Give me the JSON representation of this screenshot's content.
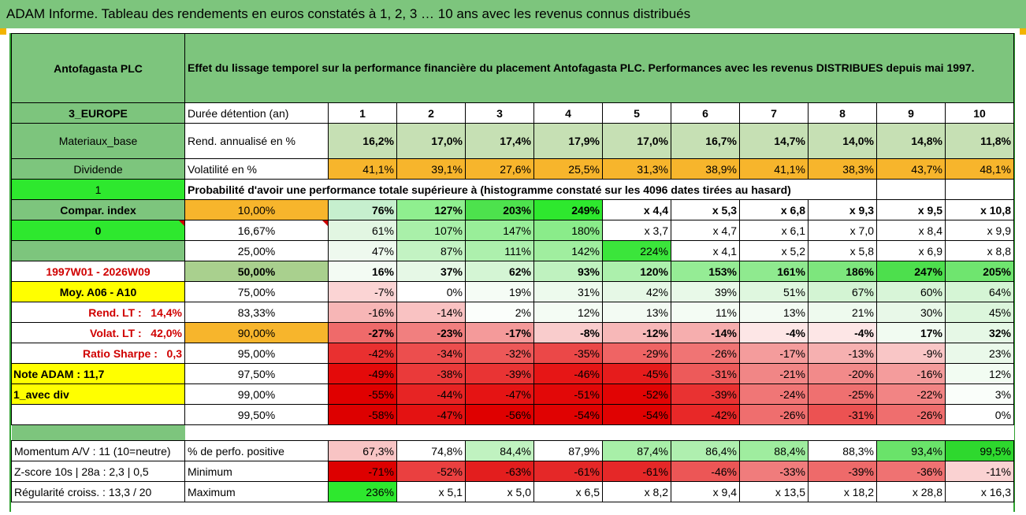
{
  "title": "ADAM Informe. Tableau des rendements en euros constatés à 1, 2, 3 … 10 ans avec les revenus connus distribués",
  "header": {
    "company": "Antofagasta PLC",
    "description": "Effet du lissage temporel sur la performance financière du placement Antofagasta PLC. Performances avec les revenus DISTRIBUES depuis mai 1997."
  },
  "left_labels": {
    "region": "3_EUROPE",
    "sector": "Materiaux_base",
    "dividend": "Dividende",
    "one": "1",
    "compar": "Compar. index",
    "zero": "0",
    "period": "1997W01 - 2026W09",
    "moy": "Moy. A06 - A10",
    "rend_lt_label": "Rend. LT :",
    "rend_lt_value": "14,4%",
    "volat_lt_label": "Volat. LT :",
    "volat_lt_value": "42,0%",
    "sharpe_label": "Ratio Sharpe :",
    "sharpe_value": "0,3",
    "note": "Note ADAM : 11,7",
    "avec_div": "1_avec div"
  },
  "durations": {
    "label": "Durée détention (an)",
    "years": [
      "1",
      "2",
      "3",
      "4",
      "5",
      "6",
      "7",
      "8",
      "9",
      "10"
    ]
  },
  "rend": {
    "label": "Rend. annualisé en %",
    "values": [
      "16,2%",
      "17,0%",
      "17,4%",
      "17,9%",
      "17,0%",
      "16,7%",
      "14,7%",
      "14,0%",
      "14,8%",
      "11,8%"
    ]
  },
  "volat": {
    "label": "Volatilité en %",
    "values": [
      "41,1%",
      "39,1%",
      "27,6%",
      "25,5%",
      "31,3%",
      "38,9%",
      "41,1%",
      "38,3%",
      "43,7%",
      "48,1%"
    ]
  },
  "prob_title": "Probabilité d'avoir une performance totale supérieure à (histogramme constaté sur les 4096 dates tirées au hasard)",
  "quantiles": [
    {
      "label": "10,00%",
      "values": [
        "76%",
        "127%",
        "203%",
        "249%",
        "x 4,4",
        "x 5,3",
        "x 6,8",
        "x 9,3",
        "x 9,5",
        "x 10,8"
      ]
    },
    {
      "label": "16,67%",
      "values": [
        "61%",
        "107%",
        "147%",
        "180%",
        "x 3,7",
        "x 4,7",
        "x 6,1",
        "x 7,0",
        "x 8,4",
        "x 9,9"
      ]
    },
    {
      "label": "25,00%",
      "values": [
        "47%",
        "87%",
        "111%",
        "142%",
        "224%",
        "x 4,1",
        "x 5,2",
        "x 5,8",
        "x 6,9",
        "x 8,8"
      ]
    },
    {
      "label": "50,00%",
      "values": [
        "16%",
        "37%",
        "62%",
        "93%",
        "120%",
        "153%",
        "161%",
        "186%",
        "247%",
        "205%"
      ]
    },
    {
      "label": "75,00%",
      "values": [
        "-7%",
        "0%",
        "19%",
        "31%",
        "42%",
        "39%",
        "51%",
        "67%",
        "60%",
        "64%"
      ]
    },
    {
      "label": "83,33%",
      "values": [
        "-16%",
        "-14%",
        "2%",
        "12%",
        "13%",
        "11%",
        "13%",
        "21%",
        "30%",
        "45%"
      ]
    },
    {
      "label": "90,00%",
      "values": [
        "-27%",
        "-23%",
        "-17%",
        "-8%",
        "-12%",
        "-14%",
        "-4%",
        "-4%",
        "17%",
        "32%"
      ]
    },
    {
      "label": "95,00%",
      "values": [
        "-42%",
        "-34%",
        "-32%",
        "-35%",
        "-29%",
        "-26%",
        "-17%",
        "-13%",
        "-9%",
        "23%"
      ]
    },
    {
      "label": "97,50%",
      "values": [
        "-49%",
        "-38%",
        "-39%",
        "-46%",
        "-45%",
        "-31%",
        "-21%",
        "-20%",
        "-16%",
        "12%"
      ]
    },
    {
      "label": "99,00%",
      "values": [
        "-55%",
        "-44%",
        "-47%",
        "-51%",
        "-52%",
        "-39%",
        "-24%",
        "-25%",
        "-22%",
        "3%"
      ]
    },
    {
      "label": "99,50%",
      "values": [
        "-58%",
        "-47%",
        "-56%",
        "-54%",
        "-54%",
        "-42%",
        "-26%",
        "-31%",
        "-26%",
        "0%"
      ]
    }
  ],
  "bottom": {
    "momentum": "Momentum A/V : 11 (10=neutre)",
    "zscore": "Z-score 10s | 28a : 2,3 | 0,5",
    "regularite": "Régularité croiss. : 13,3 / 20",
    "positive": {
      "label": "% de perfo. positive",
      "values": [
        "67,3%",
        "74,8%",
        "84,4%",
        "87,9%",
        "87,4%",
        "86,4%",
        "88,4%",
        "88,3%",
        "93,4%",
        "99,5%"
      ]
    },
    "minimum": {
      "label": "Minimum",
      "values": [
        "-71%",
        "-52%",
        "-63%",
        "-61%",
        "-61%",
        "-46%",
        "-33%",
        "-39%",
        "-36%",
        "-11%"
      ]
    },
    "maximum": {
      "label": "Maximum",
      "values": [
        "236%",
        "x 5,1",
        "x 5,0",
        "x 6,5",
        "x 8,2",
        "x 9,4",
        "x 13,5",
        "x 18,2",
        "x 28,8",
        "x 16,3"
      ]
    }
  },
  "colors": {
    "header_green": "#7dc57d",
    "light_green": "#c6e0b4",
    "bright_green": "#2ee82e",
    "orange": "#f7b52c",
    "yellow": "#ffff00",
    "label_red": "#d00000"
  }
}
